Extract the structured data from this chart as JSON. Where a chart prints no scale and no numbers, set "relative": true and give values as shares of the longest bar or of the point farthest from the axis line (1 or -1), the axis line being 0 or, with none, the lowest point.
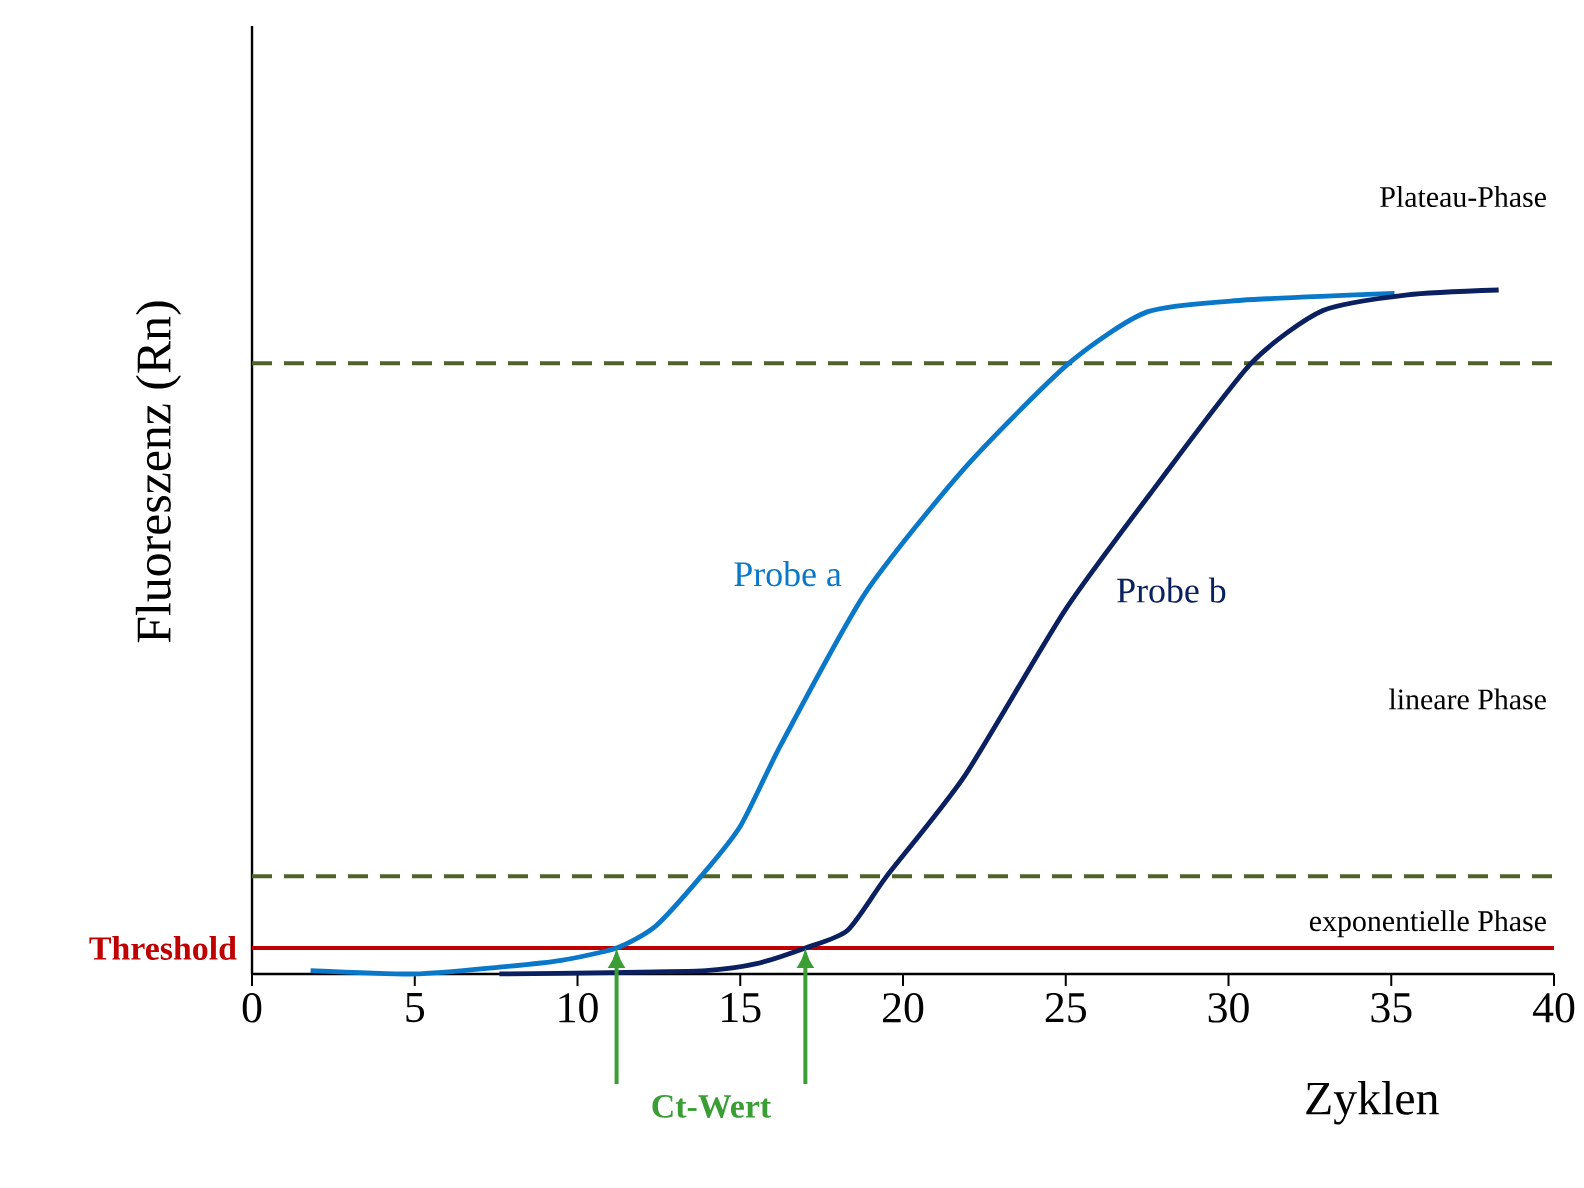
{
  "chart_data": {
    "type": "line",
    "relative": true,
    "xlabel": "Zyklen",
    "ylabel": "Fluoreszenz (Rn)",
    "xlim": [
      0,
      40
    ],
    "xticks": [
      0,
      5,
      10,
      15,
      20,
      25,
      30,
      35,
      40
    ],
    "series": [
      {
        "name": "Probe a",
        "color": "#0a78c8",
        "x": [
          1.8,
          5,
          7.6,
          9.5,
          11.2,
          12.4,
          13.8,
          15.0,
          16.27,
          18.83,
          21.9,
          25.1,
          27.5,
          30.4,
          35.1
        ],
        "values": [
          0.005,
          0,
          0.01,
          0.02,
          0.038,
          0.07,
          0.143,
          0.216,
          0.337,
          0.556,
          0.74,
          0.893,
          0.968,
          0.985,
          0.995
        ]
      },
      {
        "name": "Probe b",
        "color": "#0a2060",
        "x": [
          7.6,
          11,
          13.95,
          15.5,
          17.0,
          18.3,
          19.5,
          21.9,
          24.98,
          27.8,
          30.7,
          32.9,
          35.5,
          38.3
        ],
        "values": [
          0,
          0.002,
          0.005,
          0.015,
          0.038,
          0.064,
          0.143,
          0.29,
          0.532,
          0.715,
          0.893,
          0.97,
          0.993,
          1
        ]
      }
    ],
    "ref_lines": [
      {
        "axis": "y",
        "value": 0.038,
        "label": "Threshold",
        "color": "#c00000",
        "line_style": "solid"
      },
      {
        "axis": "y",
        "value": 0.143,
        "color": "#4f6228",
        "line_style": "dashed"
      },
      {
        "axis": "y",
        "value": 0.893,
        "color": "#4f6228",
        "line_style": "dashed"
      }
    ],
    "annotations": [
      "Plateau-Phase",
      "lineare Phase",
      "exponentielle Phase",
      "Ct-Wert"
    ]
  }
}
